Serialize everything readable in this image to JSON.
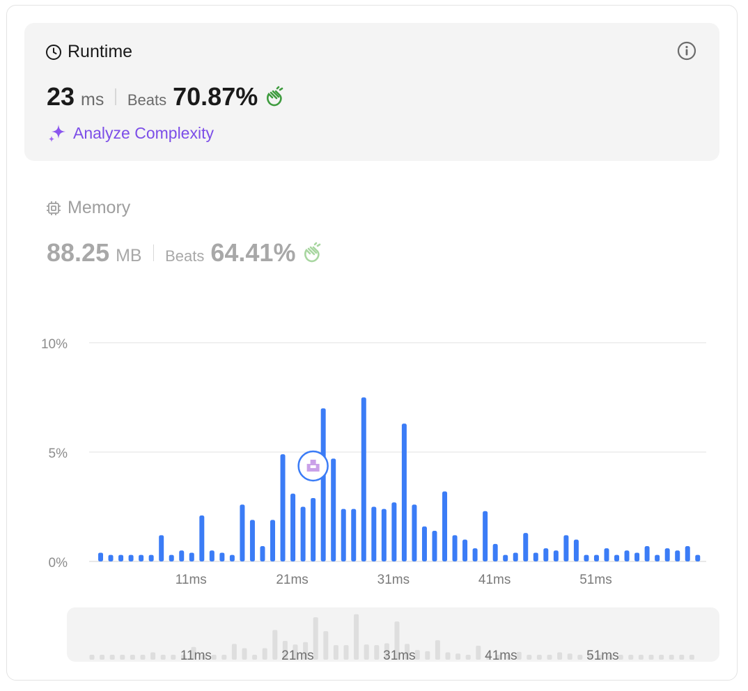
{
  "runtime": {
    "title": "Runtime",
    "value": "23",
    "unit": "ms",
    "beats_label": "Beats",
    "beats_percent": "70.87%",
    "analyze_label": "Analyze Complexity"
  },
  "memory": {
    "title": "Memory",
    "value": "88.25",
    "unit": "MB",
    "beats_label": "Beats",
    "beats_percent": "64.41%"
  },
  "colors": {
    "bar": "#3b7cf6",
    "accent_purple": "#7c4ee8",
    "clap_green": "#3e9b3e",
    "grid": "#e6e6e6",
    "mini_bar": "#dedede"
  },
  "icons": [
    "clock-icon",
    "info-icon",
    "sparkle-icon",
    "chip-icon",
    "clap-icon",
    "avatar-marker"
  ],
  "chart_data": {
    "type": "bar",
    "xlabel": "",
    "ylabel": "",
    "x": [
      2,
      3,
      4,
      5,
      6,
      7,
      8,
      9,
      10,
      11,
      12,
      13,
      14,
      15,
      16,
      17,
      18,
      19,
      20,
      21,
      22,
      23,
      24,
      25,
      26,
      27,
      28,
      29,
      30,
      31,
      32,
      33,
      34,
      35,
      36,
      37,
      38,
      39,
      40,
      41,
      42,
      43,
      44,
      45,
      46,
      47,
      48,
      49,
      50,
      51,
      52,
      53,
      54,
      55,
      56,
      57,
      58,
      59,
      60,
      61
    ],
    "values": [
      0.4,
      0.3,
      0.3,
      0.3,
      0.3,
      0.3,
      1.2,
      0.3,
      0.5,
      0.4,
      2.1,
      0.5,
      0.4,
      0.3,
      2.6,
      1.9,
      0.7,
      1.9,
      4.9,
      3.1,
      2.5,
      2.9,
      7.0,
      4.7,
      2.4,
      2.4,
      7.5,
      2.5,
      2.4,
      2.7,
      6.3,
      2.6,
      1.6,
      1.4,
      3.2,
      1.2,
      1.0,
      0.6,
      2.3,
      0.8,
      0.3,
      0.4,
      1.3,
      0.4,
      0.6,
      0.5,
      1.2,
      1.0,
      0.3,
      0.3,
      0.6,
      0.3,
      0.5,
      0.4,
      0.7,
      0.3,
      0.6,
      0.5,
      0.7,
      0.3
    ],
    "x_tick_labels": [
      "11ms",
      "21ms",
      "31ms",
      "41ms",
      "51ms"
    ],
    "x_tick_values": [
      11,
      21,
      31,
      41,
      51
    ],
    "y_tick_labels": [
      "10%",
      "5%",
      "0%"
    ],
    "y_tick_values": [
      10,
      5,
      0
    ],
    "ylim": [
      0,
      10
    ],
    "highlight_x": 23,
    "grid": true
  },
  "mini_chart": {
    "tick_labels": [
      "11ms",
      "21ms",
      "31ms",
      "41ms",
      "51ms"
    ]
  }
}
